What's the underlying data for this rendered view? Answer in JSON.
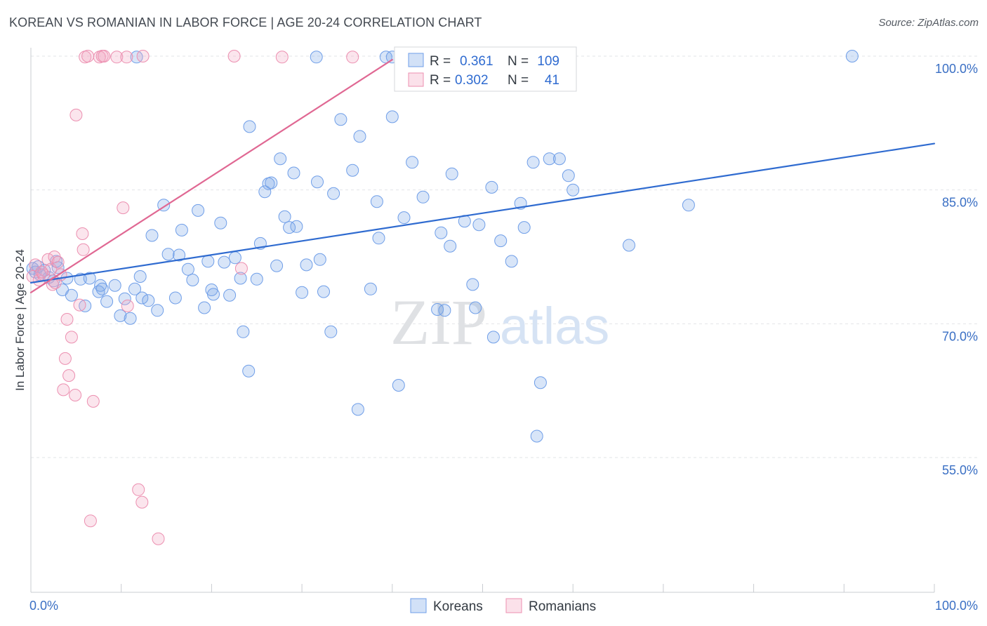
{
  "header": {
    "title": "KOREAN VS ROMANIAN IN LABOR FORCE | AGE 20-24 CORRELATION CHART",
    "source": "Source: ZipAtlas.com"
  },
  "watermark": {
    "zip": "ZIP",
    "atlas": "atlas"
  },
  "stats": [
    {
      "r_label": "R =",
      "r_value": "0.361",
      "n_label": "N =",
      "n_value": "109",
      "color": "#6f9ee8"
    },
    {
      "r_label": "R =",
      "r_value": "0.302",
      "n_label": "N =",
      "n_value": "41",
      "color": "#ec8fb0"
    }
  ],
  "chart_data": {
    "type": "scatter",
    "title": "KOREAN VS ROMANIAN IN LABOR FORCE | AGE 20-24 CORRELATION CHART",
    "xlabel": "",
    "ylabel": "In Labor Force | Age 20-24",
    "xlim": [
      0,
      100
    ],
    "ylim": [
      40,
      102
    ],
    "x_tick_labels": [
      {
        "value": 0,
        "label": "0.0%"
      },
      {
        "value": 100,
        "label": "100.0%"
      }
    ],
    "y_tick_labels": [
      {
        "value": 55,
        "label": "55.0%"
      },
      {
        "value": 70,
        "label": "70.0%"
      },
      {
        "value": 85,
        "label": "85.0%"
      },
      {
        "value": 100,
        "label": "100.0%"
      }
    ],
    "grid": true,
    "legend_position": "bottom-center",
    "series": [
      {
        "name": "Koreans",
        "color": "#6f9ee8",
        "fill": "rgba(126,168,232,0.30)",
        "trend": {
          "x": [
            0,
            100
          ],
          "y": [
            74.6,
            90.2
          ],
          "color": "#2f6bd0"
        },
        "points": [
          [
            0.2,
            76.2
          ],
          [
            0.5,
            75.8
          ],
          [
            0.8,
            76.4
          ],
          [
            1.0,
            75.5
          ],
          [
            1.5,
            76.0
          ],
          [
            2.0,
            75.2
          ],
          [
            2.5,
            74.8
          ],
          [
            3.0,
            76.3
          ],
          [
            4.0,
            75.1
          ],
          [
            3.5,
            73.8
          ],
          [
            4.5,
            73.2
          ],
          [
            5.5,
            75.0
          ],
          [
            6.5,
            75.1
          ],
          [
            7.5,
            73.6
          ],
          [
            7.7,
            74.3
          ],
          [
            7.9,
            73.9
          ],
          [
            8.4,
            72.5
          ],
          [
            9.3,
            74.3
          ],
          [
            9.9,
            70.9
          ],
          [
            10.4,
            72.8
          ],
          [
            11.0,
            70.6
          ],
          [
            11.5,
            73.9
          ],
          [
            12.1,
            75.3
          ],
          [
            12.3,
            72.9
          ],
          [
            13.0,
            72.6
          ],
          [
            13.4,
            79.9
          ],
          [
            14.0,
            71.5
          ],
          [
            14.7,
            83.3
          ],
          [
            15.2,
            77.8
          ],
          [
            16.0,
            72.9
          ],
          [
            16.4,
            77.7
          ],
          [
            16.7,
            80.5
          ],
          [
            17.4,
            76.1
          ],
          [
            17.9,
            74.9
          ],
          [
            18.5,
            82.7
          ],
          [
            19.2,
            71.8
          ],
          [
            19.6,
            77.0
          ],
          [
            20.0,
            73.8
          ],
          [
            20.2,
            73.3
          ],
          [
            21.0,
            81.3
          ],
          [
            21.4,
            76.9
          ],
          [
            22.0,
            73.2
          ],
          [
            22.6,
            77.4
          ],
          [
            23.2,
            75.1
          ],
          [
            23.5,
            69.1
          ],
          [
            24.1,
            64.7
          ],
          [
            24.2,
            92.1
          ],
          [
            25.0,
            75.0
          ],
          [
            25.4,
            79.0
          ],
          [
            25.9,
            84.8
          ],
          [
            26.3,
            85.7
          ],
          [
            26.6,
            85.8
          ],
          [
            27.2,
            76.5
          ],
          [
            27.6,
            88.5
          ],
          [
            28.1,
            82.0
          ],
          [
            28.6,
            80.8
          ],
          [
            29.1,
            86.9
          ],
          [
            29.4,
            80.9
          ],
          [
            30.0,
            73.5
          ],
          [
            30.5,
            76.6
          ],
          [
            31.7,
            85.9
          ],
          [
            32.0,
            77.2
          ],
          [
            32.4,
            73.6
          ],
          [
            33.2,
            69.1
          ],
          [
            33.5,
            84.6
          ],
          [
            34.3,
            92.9
          ],
          [
            35.6,
            87.2
          ],
          [
            36.2,
            60.4
          ],
          [
            36.4,
            91.0
          ],
          [
            37.6,
            73.9
          ],
          [
            38.3,
            83.7
          ],
          [
            38.5,
            79.6
          ],
          [
            40.0,
            93.2
          ],
          [
            40.7,
            63.1
          ],
          [
            41.3,
            81.9
          ],
          [
            42.2,
            88.1
          ],
          [
            43.4,
            84.2
          ],
          [
            45.0,
            71.6
          ],
          [
            45.4,
            80.2
          ],
          [
            45.8,
            71.5
          ],
          [
            46.4,
            78.7
          ],
          [
            46.6,
            86.8
          ],
          [
            48.0,
            81.5
          ],
          [
            49.2,
            71.8
          ],
          [
            48.9,
            74.4
          ],
          [
            49.6,
            81.1
          ],
          [
            51.0,
            85.3
          ],
          [
            51.2,
            68.5
          ],
          [
            52.0,
            79.3
          ],
          [
            53.2,
            77.0
          ],
          [
            54.2,
            83.5
          ],
          [
            54.6,
            80.8
          ],
          [
            55.6,
            88.1
          ],
          [
            56.0,
            57.4
          ],
          [
            56.4,
            63.4
          ],
          [
            57.4,
            88.5
          ],
          [
            58.5,
            88.5
          ],
          [
            59.5,
            86.6
          ],
          [
            60.0,
            85.0
          ],
          [
            66.2,
            78.8
          ],
          [
            72.8,
            83.3
          ],
          [
            90.9,
            100.0
          ],
          [
            2.8,
            77.0
          ],
          [
            6.0,
            72.0
          ],
          [
            11.7,
            99.9
          ],
          [
            31.6,
            99.9
          ],
          [
            39.3,
            99.9
          ],
          [
            40.0,
            99.9
          ],
          [
            52.5,
            99.9
          ]
        ]
      },
      {
        "name": "Romanians",
        "color": "#ec8fb0",
        "fill": "rgba(243,168,196,0.30)",
        "trend": {
          "x": [
            0,
            40
          ],
          "y": [
            73.5,
            99.6
          ],
          "color": "#e06893"
        },
        "points": [
          [
            0.2,
            75.3
          ],
          [
            0.5,
            76.6
          ],
          [
            0.9,
            74.9
          ],
          [
            1.4,
            75.5
          ],
          [
            1.9,
            77.2
          ],
          [
            2.2,
            76.1
          ],
          [
            2.4,
            74.4
          ],
          [
            2.6,
            77.5
          ],
          [
            2.7,
            74.6
          ],
          [
            3.0,
            76.9
          ],
          [
            3.3,
            75.5
          ],
          [
            3.6,
            62.6
          ],
          [
            3.8,
            66.1
          ],
          [
            4.0,
            70.5
          ],
          [
            4.2,
            64.2
          ],
          [
            4.5,
            68.5
          ],
          [
            4.9,
            62.0
          ],
          [
            5.0,
            93.4
          ],
          [
            5.4,
            72.1
          ],
          [
            5.7,
            80.1
          ],
          [
            5.8,
            78.3
          ],
          [
            6.0,
            99.9
          ],
          [
            6.3,
            100.0
          ],
          [
            6.6,
            47.9
          ],
          [
            6.9,
            61.3
          ],
          [
            7.6,
            99.9
          ],
          [
            7.9,
            100.0
          ],
          [
            8.1,
            100.0
          ],
          [
            9.5,
            99.9
          ],
          [
            10.2,
            83.0
          ],
          [
            10.6,
            99.9
          ],
          [
            10.7,
            72.0
          ],
          [
            11.9,
            51.4
          ],
          [
            12.3,
            50.0
          ],
          [
            12.4,
            100.0
          ],
          [
            14.1,
            45.9
          ],
          [
            22.5,
            100.0
          ],
          [
            23.3,
            76.2
          ],
          [
            27.8,
            99.9
          ],
          [
            35.6,
            99.9
          ],
          [
            1.2,
            75.8
          ]
        ]
      }
    ]
  }
}
